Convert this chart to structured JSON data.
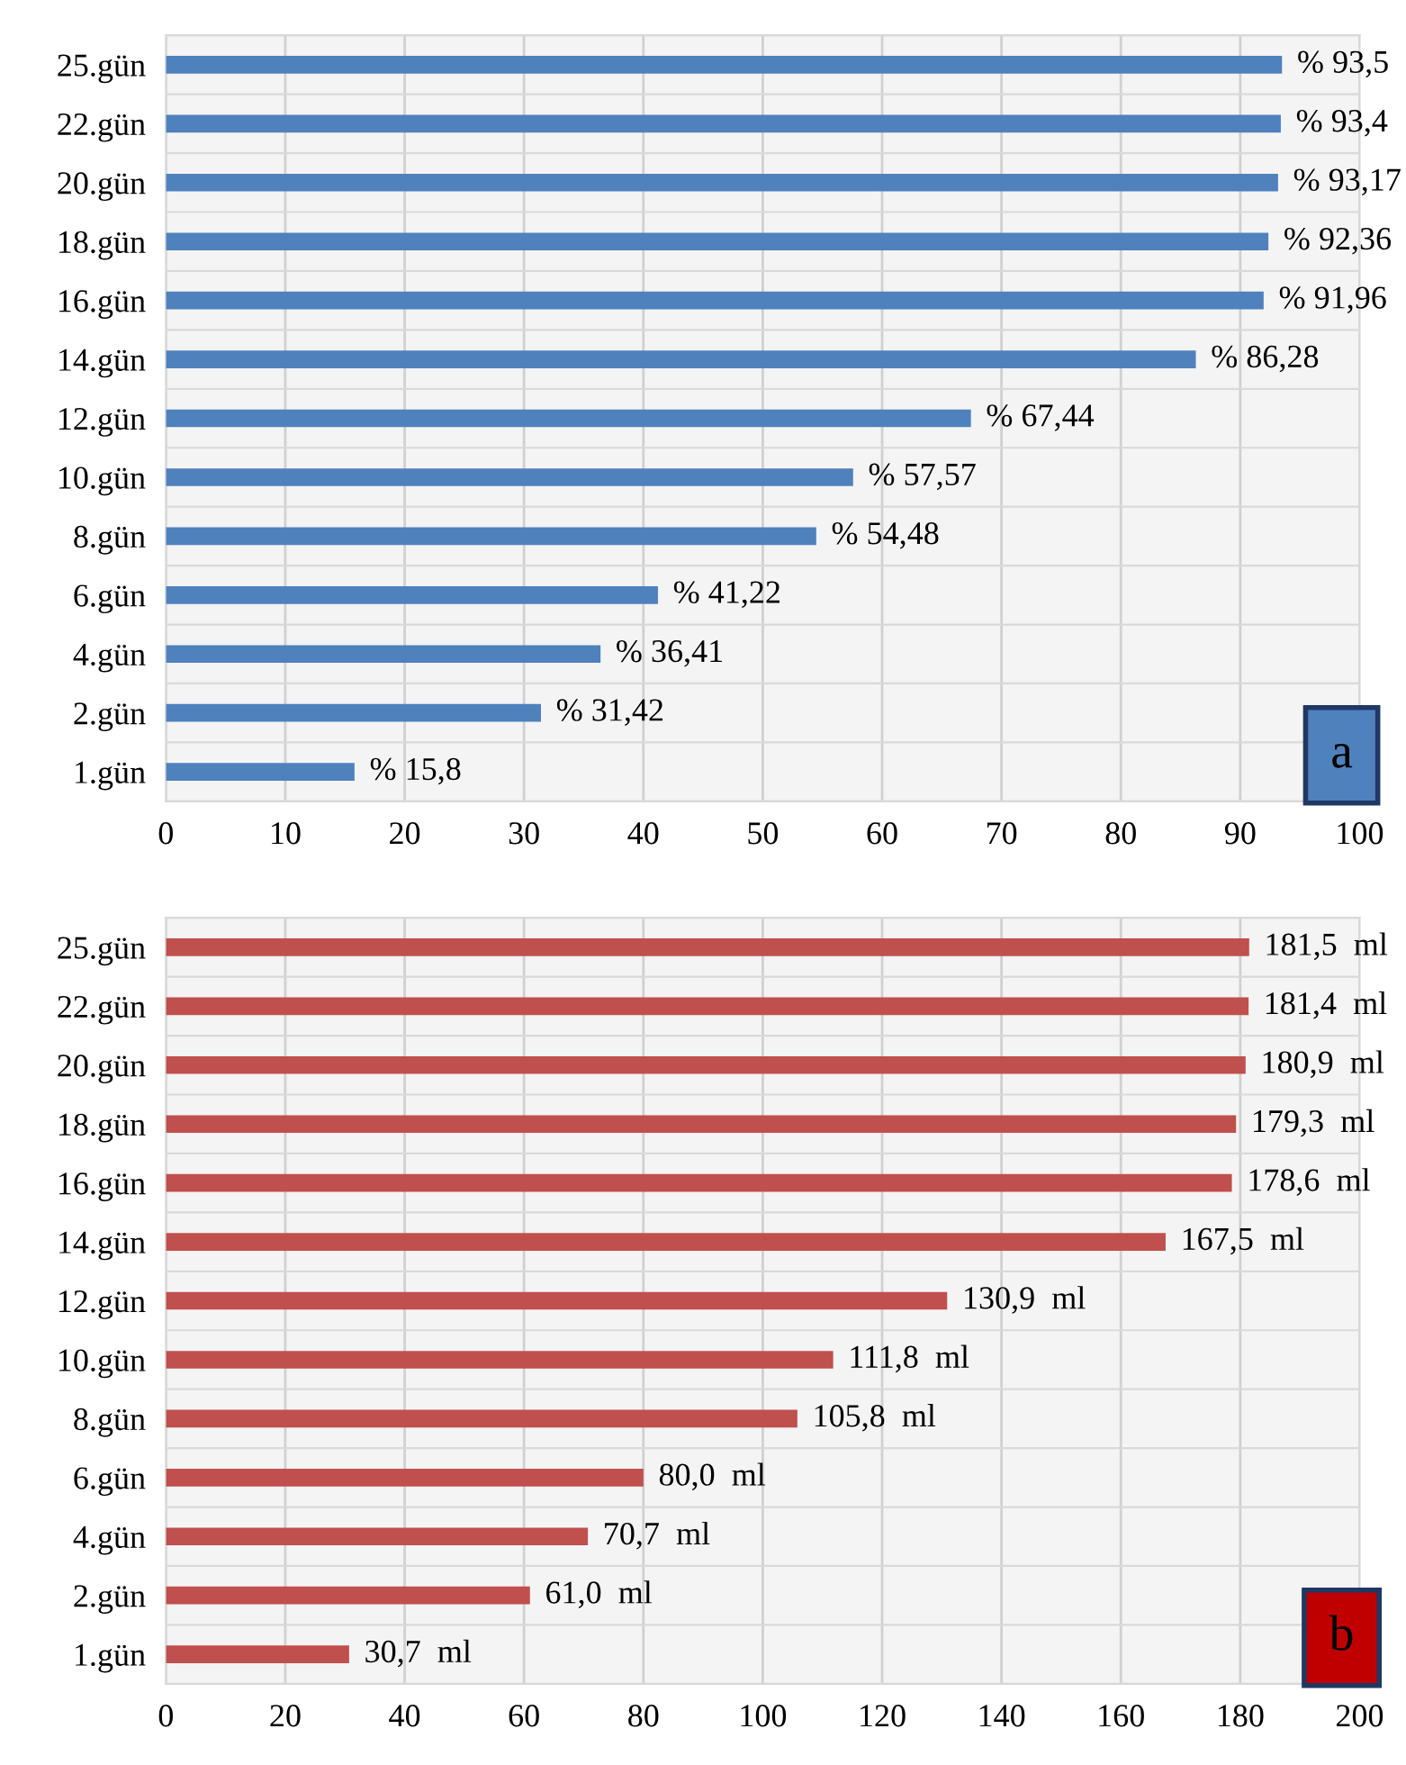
{
  "chart_data": [
    {
      "type": "bar",
      "orientation": "horizontal",
      "categories": [
        "25.gün",
        "22.gün",
        "20.gün",
        "18.gün",
        "16.gün",
        "14.gün",
        "12.gün",
        "10.gün",
        "8.gün",
        "6.gün",
        "4.gün",
        "2.gün",
        "1.gün"
      ],
      "values": [
        93.5,
        93.4,
        93.17,
        92.36,
        91.96,
        86.28,
        67.44,
        57.57,
        54.48,
        41.22,
        36.41,
        31.42,
        15.8
      ],
      "value_labels": [
        "% 93,5",
        "% 93,4",
        "% 93,17",
        "% 92,36",
        "% 91,96",
        "% 86,28",
        "% 67,44",
        "% 57,57",
        "% 54,48",
        "% 41,22",
        "% 36,41",
        "% 31,42",
        "% 15,8"
      ],
      "color": "#4f81bd",
      "xlim": [
        0,
        100
      ],
      "xticks": [
        0,
        10,
        20,
        30,
        40,
        50,
        60,
        70,
        80,
        90,
        100
      ],
      "grid": "x",
      "annotations": [
        "a"
      ]
    },
    {
      "type": "bar",
      "orientation": "horizontal",
      "categories": [
        "25.gün",
        "22.gün",
        "20.gün",
        "18.gün",
        "16.gün",
        "14.gün",
        "12.gün",
        "10.gün",
        "8.gün",
        "6.gün",
        "4.gün",
        "2.gün",
        "1.gün"
      ],
      "values": [
        181.5,
        181.4,
        180.9,
        179.3,
        178.6,
        167.5,
        130.9,
        111.8,
        105.8,
        80.0,
        70.7,
        61.0,
        30.7
      ],
      "value_labels": [
        "181,5  ml",
        "181,4  ml",
        "180,9  ml",
        "179,3  ml",
        "178,6  ml",
        "167,5  ml",
        "130,9  ml",
        "111,8  ml",
        "105,8  ml",
        "80,0  ml",
        "70,7  ml",
        "61,0  ml",
        "30,7  ml"
      ],
      "color": "#c0504d",
      "xlim": [
        0,
        200
      ],
      "xticks": [
        0,
        20,
        40,
        60,
        80,
        100,
        120,
        140,
        160,
        180,
        200
      ],
      "grid": "x",
      "annotations": [
        "b"
      ]
    }
  ]
}
